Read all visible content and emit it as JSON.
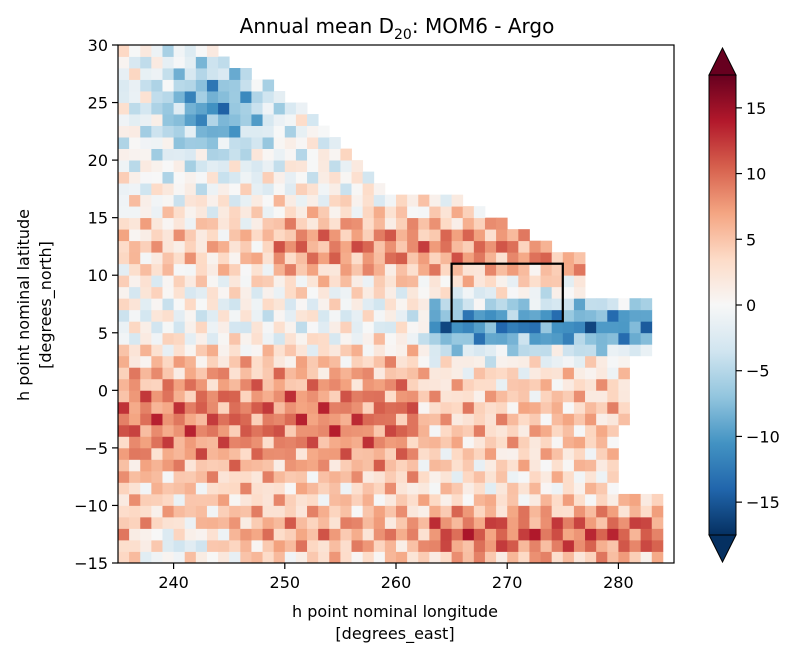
{
  "chart_data": {
    "type": "heatmap",
    "title": "Annual mean D",
    "title_subscript": "20",
    "title_suffix": ": MOM6 - Argo",
    "xlabel": "h point nominal longitude",
    "xlabel_units": "[degrees_east]",
    "ylabel": "h point nominal latitude",
    "ylabel_units": "[degrees_north]",
    "xlim": [
      235,
      285
    ],
    "ylim": [
      -15,
      30
    ],
    "xticks": [
      240,
      250,
      260,
      270,
      280
    ],
    "xtick_labels": [
      "240",
      "250",
      "260",
      "270",
      "280"
    ],
    "yticks": [
      -15,
      -10,
      -5,
      0,
      5,
      10,
      15,
      20,
      25,
      30
    ],
    "ytick_labels": [
      "−15",
      "−10",
      "−5",
      "0",
      "5",
      "10",
      "15",
      "20",
      "25",
      "30"
    ],
    "colorbar": {
      "colormap": "RdBu_r",
      "vmin": -17.5,
      "vmax": 17.5,
      "extend": "both",
      "ticks": [
        -15,
        -10,
        -5,
        0,
        5,
        10,
        15
      ],
      "tick_labels": [
        "−15",
        "−10",
        "−5",
        "0",
        "5",
        "10",
        "15"
      ]
    },
    "grid": false,
    "region_box": {
      "lon": [
        265,
        275
      ],
      "lat": [
        6,
        11
      ],
      "color": "#000000"
    },
    "fields": {
      "description": "gridded difference MOM6 minus Argo; land/no-data cells blank",
      "columns": 50,
      "rows": 45,
      "lon_range": [
        235,
        285
      ],
      "lat_range": [
        -15,
        30
      ]
    }
  }
}
